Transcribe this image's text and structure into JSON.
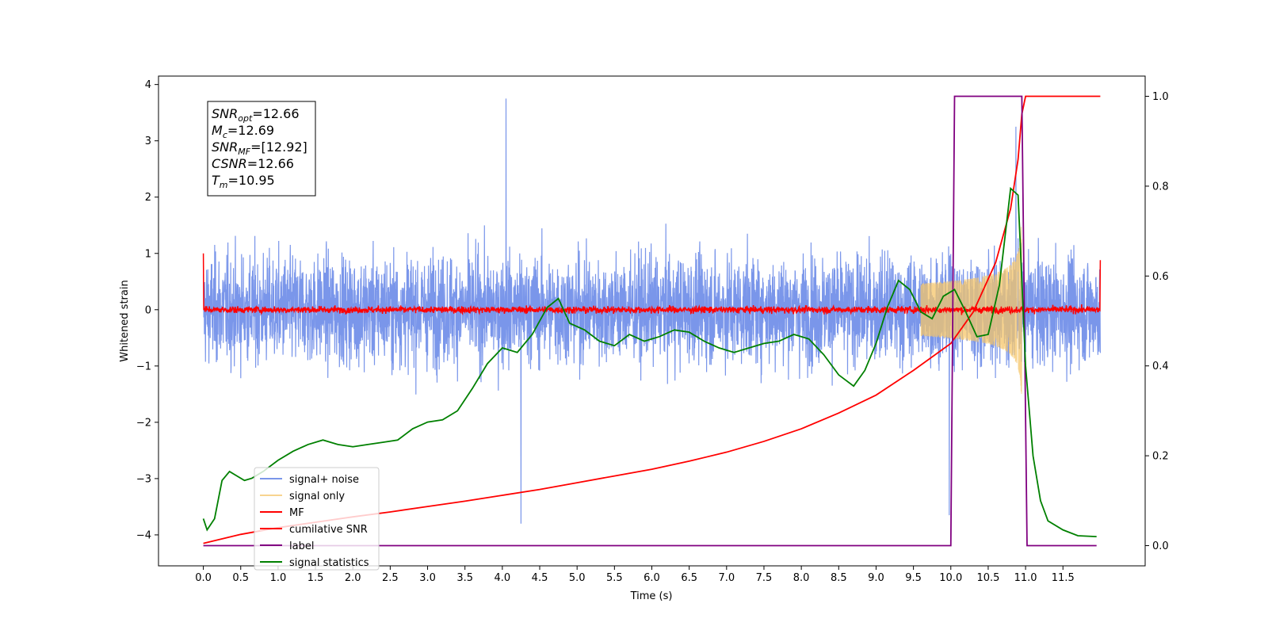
{
  "chart_data": {
    "type": "line",
    "xlabel": "Time (s)",
    "ylabel": "Whitened strain",
    "xlim": [
      -0.6,
      12.6
    ],
    "ylim": [
      -4.55,
      4.15
    ],
    "y2lim": [
      -0.045,
      1.045
    ],
    "xticks": [
      0.0,
      0.5,
      1.0,
      1.5,
      2.0,
      2.5,
      3.0,
      3.5,
      4.0,
      4.5,
      5.0,
      5.5,
      6.0,
      6.5,
      7.0,
      7.5,
      8.0,
      8.5,
      9.0,
      9.5,
      10.0,
      10.5,
      11.0,
      11.5
    ],
    "xtick_labels": [
      "0.0",
      "0.5",
      "1.0",
      "1.5",
      "2.0",
      "2.5",
      "3.0",
      "3.5",
      "4.0",
      "4.5",
      "5.0",
      "5.5",
      "6.0",
      "6.5",
      "7.0",
      "7.5",
      "8.0",
      "8.5",
      "9.0",
      "9.5",
      "10.0",
      "10.5",
      "11.0",
      "11.5"
    ],
    "yticks": [
      -4,
      -3,
      -2,
      -1,
      0,
      1,
      2,
      3,
      4
    ],
    "ytick_labels": [
      "−4",
      "−3",
      "−2",
      "−1",
      "0",
      "1",
      "2",
      "3",
      "4"
    ],
    "y2ticks": [
      0.0,
      0.2,
      0.4,
      0.6,
      0.8,
      1.0
    ],
    "y2tick_labels": [
      "0.0",
      "0.2",
      "0.4",
      "0.6",
      "0.8",
      "1.0"
    ],
    "grid": false,
    "legend_position": "lower-left",
    "annotation": {
      "lines": [
        {
          "sym": "SNR",
          "sub": "opt",
          "value": "=12.66"
        },
        {
          "sym": "M",
          "sub": "c",
          "value": "=12.69"
        },
        {
          "sym": "SNR",
          "sub": "MF",
          "value": "=[12.92]"
        },
        {
          "sym": "CSNR",
          "sub": "",
          "value": "=12.66"
        },
        {
          "sym": "T",
          "sub": "m",
          "value": "=10.95"
        }
      ]
    },
    "series": [
      {
        "name": "signal+ noise",
        "color": "#4169e1",
        "axis": "left",
        "style": "noise",
        "x_range": [
          0.0,
          12.0
        ],
        "mean": 0.0,
        "sd": 0.95,
        "peak_values": [
          [
            4.05,
            3.75
          ],
          [
            4.25,
            -3.8
          ],
          [
            10.87,
            3.25
          ],
          [
            9.98,
            -3.65
          ]
        ]
      },
      {
        "name": "signal only",
        "color": "#f5c66a",
        "axis": "left",
        "style": "chirp",
        "x_range": [
          9.6,
          10.95
        ],
        "amplitude_at_end": 1.9
      },
      {
        "name": "MF",
        "color": "#ff0000",
        "axis": "left",
        "style": "noise",
        "x_range": [
          0.0,
          12.0
        ],
        "mean": 0.0,
        "sd": 0.06,
        "edge_values": [
          [
            0.0,
            1.0
          ],
          [
            12.0,
            0.88
          ]
        ]
      },
      {
        "name": "cumilative SNR",
        "color": "#ff0000",
        "axis": "right",
        "x": [
          0.0,
          0.5,
          1.0,
          1.5,
          2.0,
          2.5,
          3.0,
          3.5,
          4.0,
          4.5,
          5.0,
          5.5,
          6.0,
          6.5,
          7.0,
          7.5,
          8.0,
          8.5,
          9.0,
          9.5,
          10.0,
          10.3,
          10.6,
          10.8,
          10.9,
          10.95,
          11.0,
          11.5,
          12.0
        ],
        "y": [
          0.005,
          0.025,
          0.04,
          0.052,
          0.064,
          0.075,
          0.087,
          0.099,
          0.112,
          0.125,
          0.14,
          0.155,
          0.17,
          0.188,
          0.208,
          0.232,
          0.26,
          0.295,
          0.335,
          0.39,
          0.45,
          0.52,
          0.63,
          0.75,
          0.86,
          0.96,
          1.0,
          1.0,
          1.0
        ]
      },
      {
        "name": "label",
        "color": "#800080",
        "axis": "right",
        "x": [
          0.0,
          10.0,
          10.05,
          10.95,
          11.02,
          11.95
        ],
        "y": [
          0.0,
          0.0,
          1.0,
          1.0,
          0.0,
          0.0
        ]
      },
      {
        "name": "signal statistics",
        "color": "#008000",
        "axis": "right",
        "x": [
          0.0,
          0.05,
          0.15,
          0.25,
          0.35,
          0.45,
          0.55,
          0.65,
          0.8,
          1.0,
          1.2,
          1.4,
          1.6,
          1.8,
          2.0,
          2.2,
          2.4,
          2.6,
          2.8,
          3.0,
          3.2,
          3.4,
          3.6,
          3.8,
          4.0,
          4.2,
          4.4,
          4.6,
          4.75,
          4.9,
          5.1,
          5.3,
          5.5,
          5.7,
          5.9,
          6.1,
          6.3,
          6.5,
          6.7,
          6.9,
          7.1,
          7.3,
          7.5,
          7.7,
          7.9,
          8.1,
          8.3,
          8.5,
          8.7,
          8.85,
          9.0,
          9.15,
          9.3,
          9.45,
          9.6,
          9.75,
          9.9,
          10.05,
          10.2,
          10.35,
          10.5,
          10.65,
          10.8,
          10.9,
          11.0,
          11.1,
          11.2,
          11.3,
          11.5,
          11.7,
          11.95
        ],
        "y": [
          0.06,
          0.035,
          0.06,
          0.145,
          0.165,
          0.155,
          0.145,
          0.15,
          0.165,
          0.19,
          0.21,
          0.225,
          0.235,
          0.225,
          0.22,
          0.225,
          0.23,
          0.235,
          0.26,
          0.275,
          0.28,
          0.3,
          0.35,
          0.405,
          0.44,
          0.43,
          0.47,
          0.53,
          0.55,
          0.495,
          0.48,
          0.455,
          0.445,
          0.47,
          0.455,
          0.465,
          0.48,
          0.475,
          0.455,
          0.44,
          0.43,
          0.44,
          0.45,
          0.455,
          0.47,
          0.46,
          0.425,
          0.38,
          0.355,
          0.39,
          0.45,
          0.53,
          0.59,
          0.57,
          0.52,
          0.505,
          0.555,
          0.57,
          0.52,
          0.465,
          0.47,
          0.58,
          0.795,
          0.78,
          0.4,
          0.2,
          0.1,
          0.055,
          0.035,
          0.022,
          0.02
        ]
      }
    ]
  }
}
